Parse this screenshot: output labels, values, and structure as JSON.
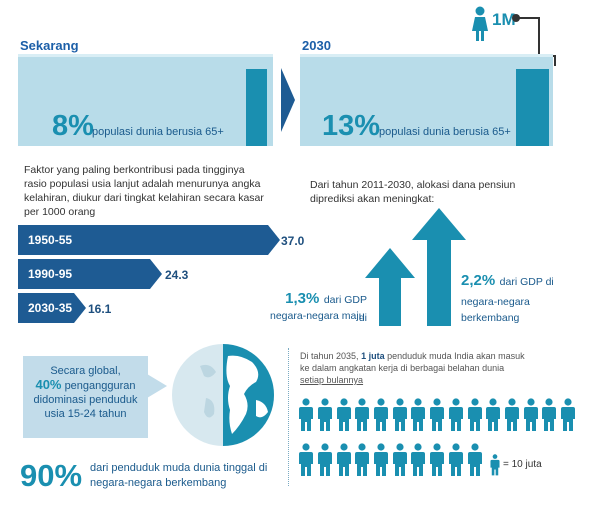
{
  "top_icon": {
    "label": "1M",
    "icon": "woman-icon",
    "color": "#1a8fb0"
  },
  "now": {
    "heading": "Sekarang",
    "percent": "8%",
    "text": "populasi dunia berusia 65+"
  },
  "future": {
    "heading": "2030",
    "percent": "13%",
    "text": "populasi dunia berusia 65+"
  },
  "birth_rate": {
    "description": "Faktor yang paling berkontribusi pada tingginya rasio  populasi usia lanjut adalah menurunya angka kelahiran, diukur dari tingkat kelahiran secara kasar per 1000 orang",
    "rows": [
      {
        "period": "1950-55",
        "value": "37.0"
      },
      {
        "period": "1990-95",
        "value": "24.3"
      },
      {
        "period": "2030-35",
        "value": "16.1"
      }
    ]
  },
  "pension": {
    "intro": "Dari tahun 2011-2030, alokasi dana pensiun diprediksi akan meningkat:",
    "developed_pct": "1,3%",
    "developed_text_a": "dari GDP di",
    "developed_text_b": "negara-negara maju",
    "developing_pct": "2,2%",
    "developing_text_a": "dari GDP di",
    "developing_text_b": "negara-negara",
    "developing_text_c": "berkembang"
  },
  "youth": {
    "callout_a": "Secara global,",
    "callout_pct": "40%",
    "callout_b": "pengangguran",
    "callout_c": "didominasi penduduk",
    "callout_d": "usia 15-24 tahun",
    "big_pct": "90%",
    "big_text_a": "dari penduduk muda dunia tinggal di",
    "big_text_b": "negara-negara berkembang"
  },
  "india": {
    "text_a": "Di tahun 2035,",
    "text_bold": "1 juta",
    "text_b": "penduduk muda India akan  masuk",
    "text_c": "ke dalam angkatan kerja di berbagai belahan dunia",
    "text_d": "setiap bulannya",
    "legend": "= 10 juta",
    "row1_count": 15,
    "row2_count": 10,
    "icon": "person-icon"
  },
  "colors": {
    "teal": "#1a8fb0",
    "navy": "#1e5b93",
    "light": "#b8dce9"
  }
}
